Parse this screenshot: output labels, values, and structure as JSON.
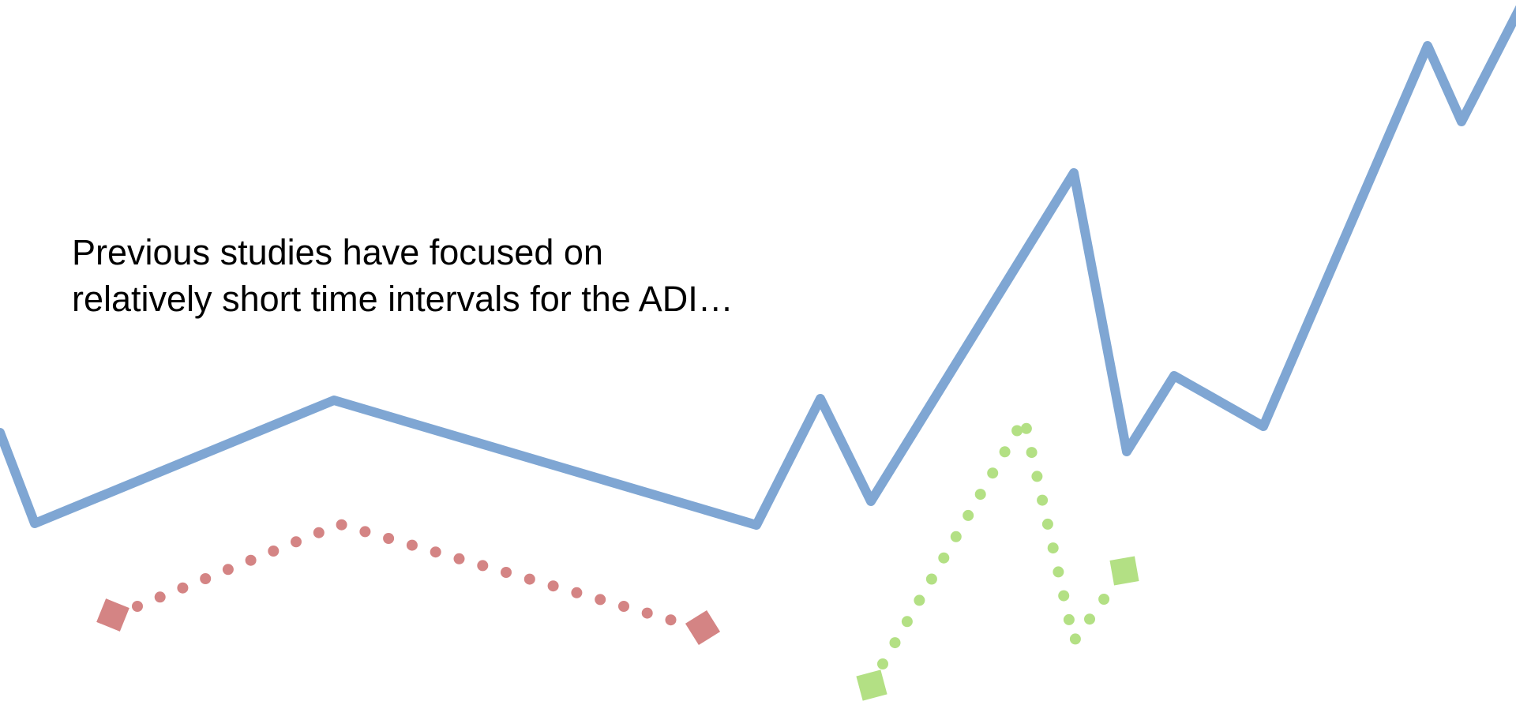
{
  "caption": {
    "line1": "Previous studies have focused on",
    "line2": "relatively short time intervals for the ADI…"
  },
  "colors": {
    "background": "#ffffff",
    "text": "#000000",
    "blue_line": "#7fa6d3",
    "red_dots": "#d48484",
    "green_dots": "#b3e084"
  }
}
